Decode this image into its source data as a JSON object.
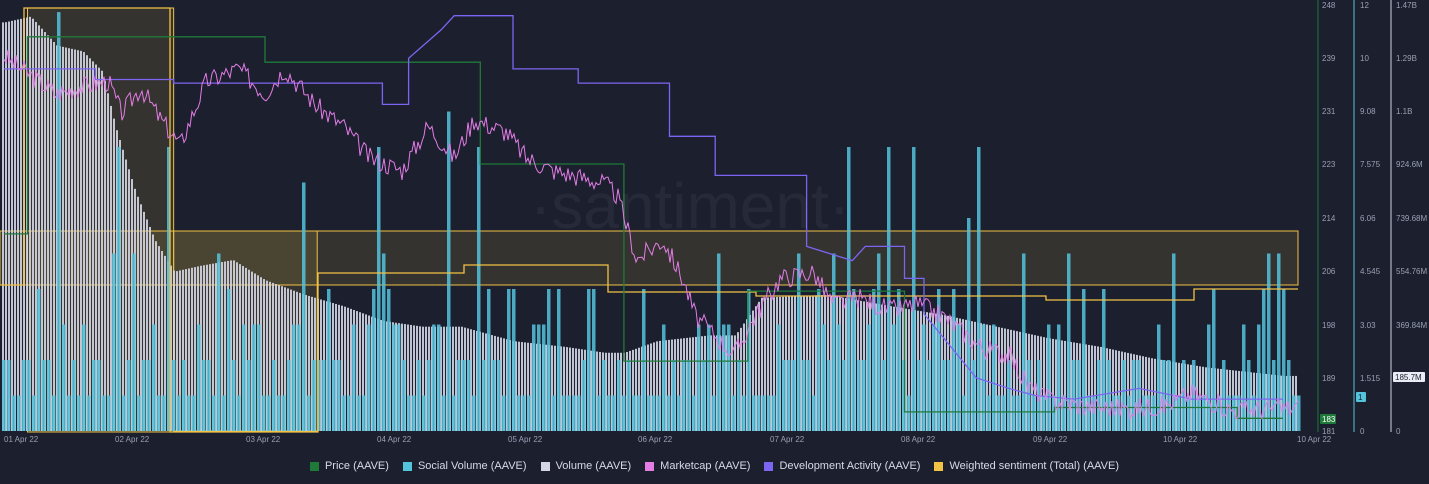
{
  "chart_data": {
    "type": "mixed",
    "watermark": "·santiment·",
    "x_tick_labels": [
      "01 Apr 22",
      "02 Apr 22",
      "03 Apr 22",
      "04 Apr 22",
      "05 Apr 22",
      "06 Apr 22",
      "07 Apr 22",
      "08 Apr 22",
      "09 Apr 22",
      "10 Apr 22",
      "10 Apr 22"
    ],
    "axes": {
      "price": {
        "ticks": [
          "248",
          "239",
          "231",
          "223",
          "214",
          "206",
          "198",
          "189",
          "181"
        ],
        "range": [
          181,
          248
        ],
        "current_label": "183",
        "color": "#1f7a3a"
      },
      "social_volume": {
        "ticks": [
          "12",
          "10",
          "9.08",
          "7.575",
          "6.06",
          "4.545",
          "3.03",
          "1.515",
          "0"
        ],
        "range": [
          0,
          12
        ],
        "current_label": "1",
        "color": "#54c3dc"
      },
      "volume": {
        "ticks": [
          "1.47B",
          "1.29B",
          "1.1B",
          "924.6M",
          "739.68M",
          "554.76M",
          "369.84M",
          "185.7M",
          "0"
        ],
        "range": [
          0,
          1.47
        ],
        "current_label": "185.7M",
        "color": "#d4d6e4"
      }
    },
    "series": [
      {
        "name": "Price (AAVE)",
        "color": "#1f7a3a",
        "kind": "step",
        "points": [
          [
            0,
            212
          ],
          [
            0.18,
            212
          ],
          [
            0.18,
            243
          ],
          [
            2.0,
            243
          ],
          [
            2.0,
            239
          ],
          [
            3.1,
            239
          ],
          [
            3.1,
            239
          ],
          [
            3.65,
            239
          ],
          [
            3.65,
            223
          ],
          [
            4.75,
            223
          ],
          [
            4.75,
            192
          ],
          [
            5.7,
            192
          ],
          [
            5.7,
            203
          ],
          [
            6.9,
            203
          ],
          [
            6.9,
            184
          ],
          [
            8.05,
            184
          ],
          [
            8.05,
            184.7
          ],
          [
            9.45,
            184.7
          ],
          [
            9.45,
            183
          ],
          [
            9.8,
            183
          ]
        ]
      },
      {
        "name": "Social Volume (AAVE)",
        "color": "#54c3dc",
        "kind": "bars"
      },
      {
        "name": "Volume (AAVE)",
        "color": "#d4d6e4",
        "kind": "bars",
        "points": [
          [
            0,
            1.41
          ],
          [
            0.2,
            1.43
          ],
          [
            0.4,
            1.33
          ],
          [
            0.6,
            1.31
          ],
          [
            0.75,
            1.24
          ],
          [
            0.85,
            1.05
          ],
          [
            1.0,
            0.83
          ],
          [
            1.15,
            0.66
          ],
          [
            1.3,
            0.55
          ],
          [
            1.5,
            0.57
          ],
          [
            1.75,
            0.59
          ],
          [
            2.0,
            0.52
          ],
          [
            2.3,
            0.47
          ],
          [
            2.6,
            0.43
          ],
          [
            2.9,
            0.38
          ],
          [
            3.2,
            0.36
          ],
          [
            3.5,
            0.36
          ],
          [
            3.9,
            0.31
          ],
          [
            4.3,
            0.29
          ],
          [
            4.6,
            0.27
          ],
          [
            4.75,
            0.27
          ],
          [
            5.0,
            0.31
          ],
          [
            5.4,
            0.33
          ],
          [
            5.6,
            0.33
          ],
          [
            5.8,
            0.46
          ],
          [
            6.3,
            0.47
          ],
          [
            6.8,
            0.43
          ],
          [
            7.2,
            0.4
          ],
          [
            7.6,
            0.36
          ],
          [
            8.0,
            0.32
          ],
          [
            8.4,
            0.29
          ],
          [
            8.8,
            0.25
          ],
          [
            9.2,
            0.22
          ],
          [
            9.6,
            0.2
          ],
          [
            9.8,
            0.19
          ]
        ]
      },
      {
        "name": "Marketcap (AAVE)",
        "color": "#e47ce6",
        "kind": "line",
        "points": [
          [
            0,
            240
          ],
          [
            0.2,
            237
          ],
          [
            0.4,
            234
          ],
          [
            0.55,
            235
          ],
          [
            0.8,
            236
          ],
          [
            0.9,
            231
          ],
          [
            1.05,
            235
          ],
          [
            1.2,
            230
          ],
          [
            1.35,
            226
          ],
          [
            1.55,
            236
          ],
          [
            1.8,
            238
          ],
          [
            2.0,
            234
          ],
          [
            2.15,
            238
          ],
          [
            2.4,
            232
          ],
          [
            2.6,
            229
          ],
          [
            2.8,
            224
          ],
          [
            3.05,
            222
          ],
          [
            3.25,
            229
          ],
          [
            3.45,
            224
          ],
          [
            3.6,
            230
          ],
          [
            3.85,
            228
          ],
          [
            4.0,
            224
          ],
          [
            4.2,
            222
          ],
          [
            4.4,
            221
          ],
          [
            4.6,
            220
          ],
          [
            4.7,
            218
          ],
          [
            4.85,
            208
          ],
          [
            5.05,
            211
          ],
          [
            5.2,
            205
          ],
          [
            5.3,
            199
          ],
          [
            5.45,
            196
          ],
          [
            5.6,
            193
          ],
          [
            5.75,
            199
          ],
          [
            5.95,
            205
          ],
          [
            6.2,
            206
          ],
          [
            6.35,
            201
          ],
          [
            6.55,
            202
          ],
          [
            6.8,
            200
          ],
          [
            7.0,
            201
          ],
          [
            7.2,
            199
          ],
          [
            7.5,
            194
          ],
          [
            7.7,
            193
          ],
          [
            7.85,
            188
          ],
          [
            8.0,
            186
          ],
          [
            8.25,
            185
          ],
          [
            8.6,
            184.5
          ],
          [
            8.9,
            185
          ],
          [
            9.1,
            187
          ],
          [
            9.4,
            184.3
          ],
          [
            9.8,
            184.6
          ]
        ]
      },
      {
        "name": "Development Activity (AAVE)",
        "color": "#7c65f2",
        "kind": "step",
        "points": [
          [
            0,
            10.2
          ],
          [
            0.7,
            10.2
          ],
          [
            0.7,
            9.9
          ],
          [
            1.3,
            9.9
          ],
          [
            1.3,
            9.8
          ],
          [
            2.1,
            9.8
          ],
          [
            2.1,
            9.8
          ],
          [
            2.9,
            9.8
          ],
          [
            2.9,
            9.2
          ],
          [
            3.1,
            9.2
          ],
          [
            3.1,
            10.5
          ],
          [
            3.35,
            11.3
          ],
          [
            3.45,
            11.7
          ],
          [
            3.9,
            11.7
          ],
          [
            3.9,
            10.2
          ],
          [
            4.4,
            10.2
          ],
          [
            4.4,
            9.8
          ],
          [
            5.1,
            9.8
          ],
          [
            5.1,
            8.3
          ],
          [
            5.45,
            8.3
          ],
          [
            5.45,
            7.2
          ],
          [
            6.15,
            7.2
          ],
          [
            6.15,
            5.2
          ],
          [
            6.5,
            4.8
          ],
          [
            6.6,
            5.2
          ],
          [
            6.9,
            5.2
          ],
          [
            6.9,
            4.3
          ],
          [
            7.05,
            4.3
          ],
          [
            7.05,
            3.3
          ],
          [
            7.45,
            1.5
          ],
          [
            7.7,
            1.2
          ],
          [
            7.9,
            1.0
          ],
          [
            8.2,
            0.9
          ],
          [
            8.7,
            1.2
          ],
          [
            9.1,
            0.9
          ],
          [
            9.8,
            0.9
          ]
        ]
      },
      {
        "name": "Weighted sentiment (Total) (AAVE)",
        "color": "#f2c244",
        "kind": "step"
      }
    ]
  },
  "legend": [
    {
      "label": "Price (AAVE)",
      "color": "#1f7a3a"
    },
    {
      "label": "Social Volume (AAVE)",
      "color": "#54c3dc"
    },
    {
      "label": "Volume (AAVE)",
      "color": "#d4d6e4"
    },
    {
      "label": "Marketcap (AAVE)",
      "color": "#e47ce6"
    },
    {
      "label": "Development Activity (AAVE)",
      "color": "#7c65f2"
    },
    {
      "label": "Weighted sentiment (Total) (AAVE)",
      "color": "#f2c244"
    }
  ]
}
